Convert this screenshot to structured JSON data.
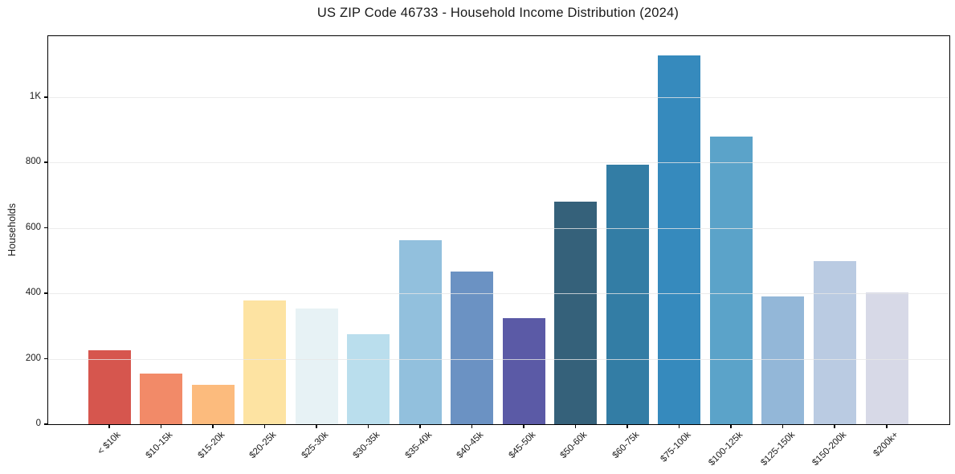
{
  "chart_data": {
    "type": "bar",
    "title": "US ZIP Code 46733 - Household Income Distribution (2024)",
    "xlabel": "",
    "ylabel": "Households",
    "categories": [
      "< $10k",
      "$10-15k",
      "$15-20k",
      "$20-25k",
      "$25-30k",
      "$30-35k",
      "$35-40k",
      "$40-45k",
      "$45-50k",
      "$50-60k",
      "$60-75k",
      "$75-100k",
      "$100-125k",
      "$125-150k",
      "$150-200k",
      "$200k+"
    ],
    "values": [
      226,
      156,
      121,
      378,
      355,
      275,
      563,
      468,
      324,
      681,
      794,
      1128,
      881,
      392,
      500,
      402
    ],
    "bar_colors": [
      "#d6564e",
      "#f28a68",
      "#fcbb7d",
      "#fde3a2",
      "#e7f2f5",
      "#badeed",
      "#92c0dd",
      "#6b92c3",
      "#5b5aa6",
      "#35617a",
      "#337da5",
      "#368abd",
      "#5ba3c9",
      "#93b7d8",
      "#bacbe2",
      "#d7d9e7"
    ],
    "ylim": [
      0,
      1187
    ],
    "yticks": [
      {
        "value": 0,
        "label": "0"
      },
      {
        "value": 200,
        "label": "200"
      },
      {
        "value": 400,
        "label": "400"
      },
      {
        "value": 600,
        "label": "600"
      },
      {
        "value": 800,
        "label": "800"
      },
      {
        "value": 1000,
        "label": "1K"
      }
    ],
    "grid": "horizontal",
    "legend_position": "none"
  },
  "colors": {
    "background": "#ffffff",
    "spine": "#000000",
    "gridline": "#e7e7e7",
    "text": "#1a1a1a"
  }
}
